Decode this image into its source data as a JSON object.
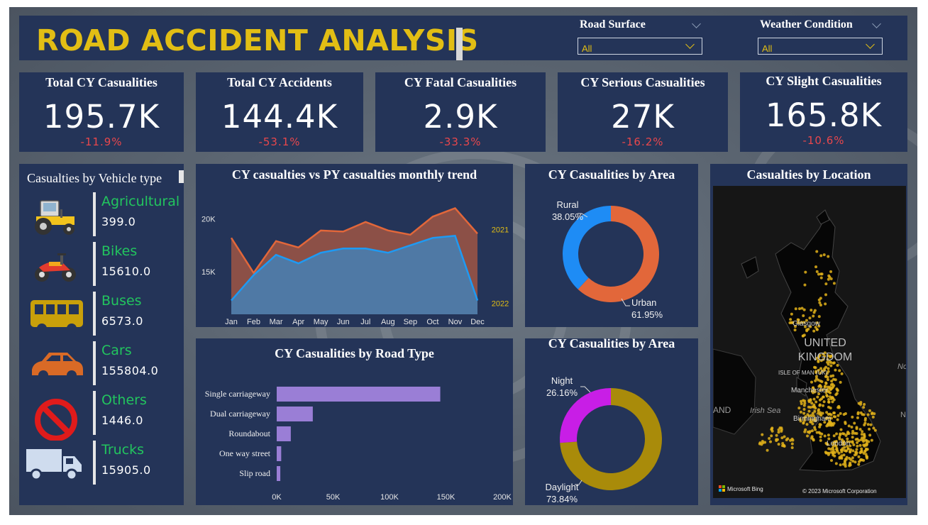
{
  "header": {
    "title": "ROAD ACCIDENT ANALYSIS"
  },
  "filters": [
    {
      "label": "Road Surface",
      "value": "All"
    },
    {
      "label": "Weather Condition",
      "value": "All"
    }
  ],
  "kpis": [
    {
      "title": "Total CY Casualities",
      "value": "195.7K",
      "delta": "-11.9%"
    },
    {
      "title": "Total CY Accidents",
      "value": "144.4K",
      "delta": "-53.1%"
    },
    {
      "title": "CY Fatal Casualities",
      "value": "2.9K",
      "delta": "-33.3%"
    },
    {
      "title": "CY Serious Casualities",
      "value": "27K",
      "delta": "-16.2%"
    },
    {
      "title": "CY Slight Casualities",
      "value": "165.8K",
      "delta": "-10.6%"
    }
  ],
  "vehicles": {
    "title": "Casualties by Vehicle type",
    "items": [
      {
        "name": "Agricultural",
        "value": "399.0",
        "icon": "tractor-icon"
      },
      {
        "name": "Bikes",
        "value": "15610.0",
        "icon": "motorbike-icon"
      },
      {
        "name": "Buses",
        "value": "6573.0",
        "icon": "bus-icon"
      },
      {
        "name": "Cars",
        "value": "155804.0",
        "icon": "car-icon"
      },
      {
        "name": "Others",
        "value": "1446.0",
        "icon": "no-entry-icon"
      },
      {
        "name": "Trucks",
        "value": "15905.0",
        "icon": "truck-icon"
      }
    ]
  },
  "colors": {
    "title": "#e2be14",
    "panel": "#243458",
    "negative": "#e8474c",
    "vehicle_label": "#22c55e",
    "py_series": "#e2673a",
    "cy_series": "#1e9af3",
    "road_bar": "#9a7ed6",
    "urban": "#e2673a",
    "rural": "#1e8cf5",
    "night": "#c81ee6",
    "daylight": "#a98b0a"
  },
  "chart_data": [
    {
      "type": "area",
      "title": "CY casualties vs PY casualties monthly trend",
      "categories": [
        "Jan",
        "Feb",
        "Mar",
        "Apr",
        "May",
        "Jun",
        "Jul",
        "Aug",
        "Sep",
        "Oct",
        "Nov",
        "Dec"
      ],
      "yticks": [
        "15K",
        "20K"
      ],
      "ylim": [
        11000,
        22500
      ],
      "series": [
        {
          "name": "2021",
          "values": [
            18200,
            14900,
            17900,
            17300,
            18900,
            18800,
            19700,
            18900,
            18500,
            20200,
            21000,
            18600
          ]
        },
        {
          "name": "2022",
          "values": [
            12300,
            14700,
            16600,
            15800,
            16800,
            17200,
            17200,
            16800,
            17500,
            18200,
            18400,
            12300
          ]
        }
      ],
      "grid": false
    },
    {
      "type": "pie",
      "title": "CY Casualities by Area",
      "labels": [
        "Urban",
        "Rural"
      ],
      "percent_labels": [
        "61.95%",
        "38.05%"
      ],
      "values": [
        61.95,
        38.05
      ]
    },
    {
      "type": "bar",
      "title": "CY Casualities by Road Type",
      "orientation": "horizontal",
      "categories": [
        "Single carriageway",
        "Dual carriageway",
        "Roundabout",
        "One way street",
        "Slip road"
      ],
      "values": [
        145000,
        32000,
        12500,
        4000,
        3200
      ],
      "xticks": [
        "0K",
        "50K",
        "100K",
        "150K",
        "200K"
      ],
      "xlim": [
        0,
        200000
      ]
    },
    {
      "type": "pie",
      "title": "CY Casualities by Area",
      "labels": [
        "Daylight",
        "Night"
      ],
      "percent_labels": [
        "73.84%",
        "26.16%"
      ],
      "values": [
        73.84,
        26.16
      ]
    }
  ],
  "map": {
    "title": "Casualties by Location",
    "labels": [
      "UNITED KINGDOM",
      "Glasgow",
      "ISLE OF MAN (UK)",
      "Manchester",
      "Birmingham",
      "London",
      "Irish Sea",
      "AND",
      "No",
      "N"
    ],
    "attribution_brand": "Microsoft Bing",
    "copyright": "© 2023 Microsoft Corporation"
  }
}
